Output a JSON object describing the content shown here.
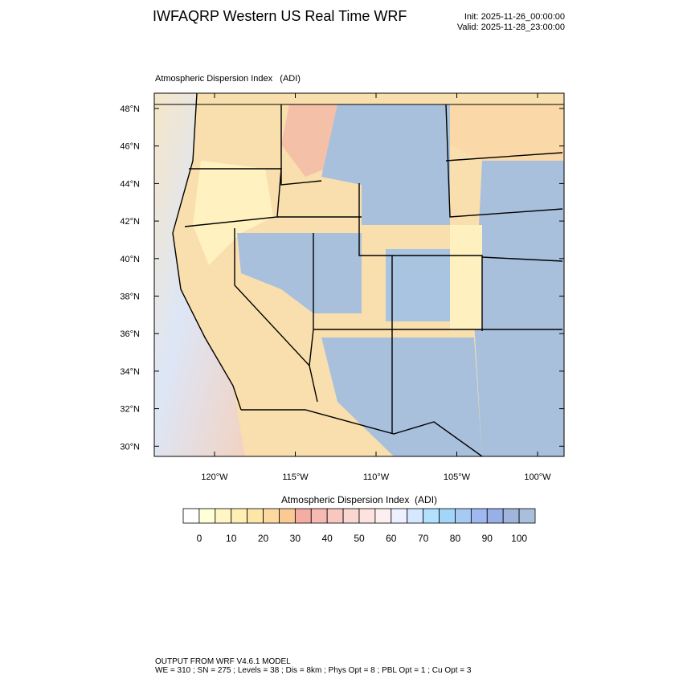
{
  "header": {
    "title": "IWFAQRP Western US Real Time WRF",
    "init": "Init: 2025-11-26_00:00:00",
    "valid": "Valid: 2025-11-28_23:00:00"
  },
  "map": {
    "title": "Atmospheric Dispersion Index   (ADI)",
    "lat_labels": [
      "48°N",
      "46°N",
      "44°N",
      "42°N",
      "40°N",
      "38°N",
      "36°N",
      "34°N",
      "32°N",
      "30°N"
    ],
    "lon_labels": [
      "120°W",
      "115°W",
      "110°W",
      "105°W",
      "100°W"
    ]
  },
  "colorbar": {
    "label": "Atmospheric Dispersion Index  (ADI)",
    "tick_labels": [
      0,
      10,
      20,
      30,
      40,
      50,
      60,
      70,
      80,
      90,
      100
    ],
    "colors": [
      "#ffffff",
      "#ffffd8",
      "#fff6c4",
      "#ffefb2",
      "#fee6a6",
      "#fdd9a0",
      "#fbc992",
      "#f5aca2",
      "#f6bab2",
      "#f8c8c0",
      "#fad6d0",
      "#fce3df",
      "#fdeff0",
      "#eef0ff",
      "#d6e8ff",
      "#b2e0ff",
      "#a2d6f8",
      "#a6caf4",
      "#a0b8f0",
      "#98b0e8",
      "#a0b4dc",
      "#a8c0dc"
    ]
  },
  "footer": {
    "line1": "OUTPUT FROM WRF V4.6.1 MODEL",
    "line2": "WE = 310 ; SN = 275 ; Levels = 38 ; Dis = 8km ; Phys Opt = 8 ; PBL Opt = 1 ; Cu Opt = 3"
  }
}
